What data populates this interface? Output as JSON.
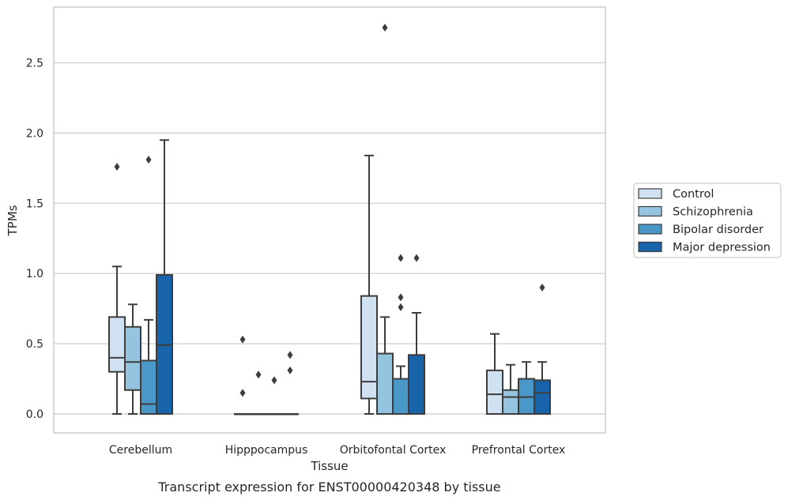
{
  "chart_data": {
    "type": "box",
    "xlabel": "Tissue",
    "ylabel": "TPMs",
    "caption": "Transcript expression for ENST00000420348 by tissue",
    "ylim": [
      -0.13,
      2.88
    ],
    "yticks": [
      0.0,
      0.5,
      1.0,
      1.5,
      2.0,
      2.5
    ],
    "ytick_labels": [
      "0.0",
      "0.5",
      "1.0",
      "1.5",
      "2.0",
      "2.5"
    ],
    "grid": "horizontal",
    "legend_position": "center-right outside",
    "categories": [
      "Cerebellum",
      "Hipppocampus",
      "Orbitofontal Cortex",
      "Prefrontal Cortex"
    ],
    "series": [
      {
        "name": "Control",
        "color": "#d0e1f2",
        "boxes": [
          {
            "whisker_low": 0.0,
            "q1": 0.3,
            "median": 0.4,
            "q3": 0.69,
            "whisker_high": 1.05,
            "outliers": [
              1.76
            ]
          },
          {
            "whisker_low": 0.0,
            "q1": 0.0,
            "median": 0.0,
            "q3": 0.0,
            "whisker_high": 0.0,
            "outliers": [
              0.53,
              0.15
            ]
          },
          {
            "whisker_low": 0.0,
            "q1": 0.11,
            "median": 0.23,
            "q3": 0.84,
            "whisker_high": 1.84,
            "outliers": []
          },
          {
            "whisker_low": 0.0,
            "q1": 0.0,
            "median": 0.14,
            "q3": 0.31,
            "whisker_high": 0.57,
            "outliers": []
          }
        ]
      },
      {
        "name": "Schizophrenia",
        "color": "#94c4df",
        "boxes": [
          {
            "whisker_low": 0.0,
            "q1": 0.17,
            "median": 0.37,
            "q3": 0.62,
            "whisker_high": 0.78,
            "outliers": []
          },
          {
            "whisker_low": 0.0,
            "q1": 0.0,
            "median": 0.0,
            "q3": 0.0,
            "whisker_high": 0.0,
            "outliers": [
              0.28
            ]
          },
          {
            "whisker_low": 0.0,
            "q1": 0.0,
            "median": 0.0,
            "q3": 0.43,
            "whisker_high": 0.69,
            "outliers": [
              2.75
            ]
          },
          {
            "whisker_low": 0.0,
            "q1": 0.0,
            "median": 0.12,
            "q3": 0.17,
            "whisker_high": 0.35,
            "outliers": []
          }
        ]
      },
      {
        "name": "Bipolar disorder",
        "color": "#4a98c9",
        "boxes": [
          {
            "whisker_low": 0.0,
            "q1": 0.0,
            "median": 0.07,
            "q3": 0.38,
            "whisker_high": 0.67,
            "outliers": [
              1.81
            ]
          },
          {
            "whisker_low": 0.0,
            "q1": 0.0,
            "median": 0.0,
            "q3": 0.0,
            "whisker_high": 0.0,
            "outliers": [
              0.24
            ]
          },
          {
            "whisker_low": 0.0,
            "q1": 0.0,
            "median": 0.0,
            "q3": 0.25,
            "whisker_high": 0.34,
            "outliers": [
              1.11,
              0.83,
              0.76
            ]
          },
          {
            "whisker_low": 0.0,
            "q1": 0.0,
            "median": 0.12,
            "q3": 0.25,
            "whisker_high": 0.37,
            "outliers": []
          }
        ]
      },
      {
        "name": "Major depression",
        "color": "#1764ab",
        "boxes": [
          {
            "whisker_low": 0.0,
            "q1": 0.0,
            "median": 0.49,
            "q3": 0.99,
            "whisker_high": 1.95,
            "outliers": []
          },
          {
            "whisker_low": 0.0,
            "q1": 0.0,
            "median": 0.0,
            "q3": 0.0,
            "whisker_high": 0.0,
            "outliers": [
              0.42,
              0.31
            ]
          },
          {
            "whisker_low": 0.0,
            "q1": 0.0,
            "median": 0.0,
            "q3": 0.42,
            "whisker_high": 0.72,
            "outliers": [
              1.11
            ]
          },
          {
            "whisker_low": 0.0,
            "q1": 0.0,
            "median": 0.15,
            "q3": 0.24,
            "whisker_high": 0.37,
            "outliers": [
              0.9
            ]
          }
        ]
      }
    ]
  }
}
